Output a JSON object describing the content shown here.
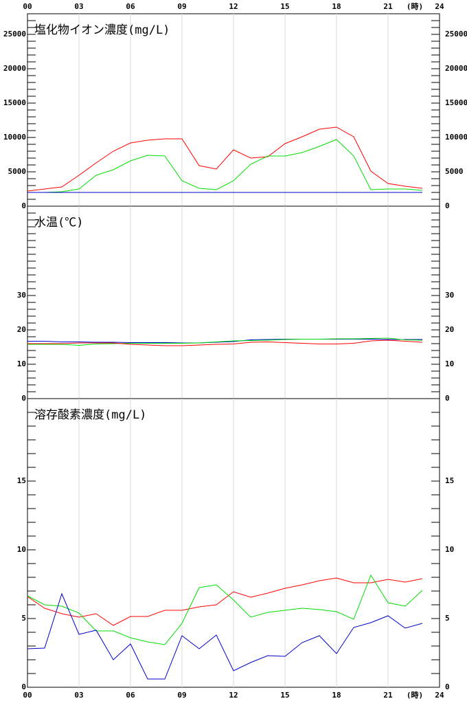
{
  "chart_data": [
    {
      "type": "line",
      "title": "塩化物イオン濃度(mg/L)",
      "x_label": "(時)",
      "x": [
        0,
        1,
        2,
        3,
        4,
        5,
        6,
        7,
        8,
        9,
        10,
        11,
        12,
        13,
        14,
        15,
        16,
        17,
        18,
        19,
        20,
        21,
        22,
        23
      ],
      "xlim": [
        0,
        24
      ],
      "xticks": [
        {
          "value": 0,
          "label": "00"
        },
        {
          "value": 3,
          "label": "03"
        },
        {
          "value": 6,
          "label": "06"
        },
        {
          "value": 9,
          "label": "09"
        },
        12,
        15,
        18,
        21,
        24
      ],
      "ylim": [
        0,
        28000
      ],
      "yticks": [
        0,
        5000,
        10000,
        15000,
        20000,
        25000
      ],
      "series": [
        {
          "color": "#ff0000",
          "values": [
            2200,
            2500,
            2800,
            4500,
            6300,
            8000,
            9200,
            9600,
            9800,
            9800,
            5900,
            5400,
            8200,
            7000,
            7200,
            9100,
            10100,
            11200,
            11500,
            10100,
            5100,
            3300,
            2900,
            2600
          ]
        },
        {
          "color": "#00dd00",
          "values": [
            2000,
            2000,
            2100,
            2500,
            4500,
            5300,
            6600,
            7400,
            7300,
            3700,
            2600,
            2400,
            3700,
            6100,
            7300,
            7300,
            7800,
            8700,
            9700,
            7300,
            2400,
            2500,
            2500,
            2300
          ]
        },
        {
          "color": "#0000cc",
          "values": [
            2000,
            2000,
            2000,
            2000,
            2000,
            2000,
            2000,
            2000,
            2000,
            2000,
            2000,
            2000,
            2000,
            2000,
            2000,
            2000,
            2000,
            2000,
            2000,
            2000,
            2000,
            2000,
            2000,
            2000
          ]
        }
      ]
    },
    {
      "type": "line",
      "title": "水温(℃)",
      "x": [
        0,
        1,
        2,
        3,
        4,
        5,
        6,
        7,
        8,
        9,
        10,
        11,
        12,
        13,
        14,
        15,
        16,
        17,
        18,
        19,
        20,
        21,
        22,
        23
      ],
      "xlim": [
        0,
        24
      ],
      "ylim": [
        0,
        56
      ],
      "yticks": [
        0,
        10,
        20,
        30
      ],
      "series": [
        {
          "color": "#0000cc",
          "values": [
            16.7,
            16.7,
            16.5,
            16.5,
            16.4,
            16.4,
            16.3,
            16.3,
            16.3,
            16.2,
            16.2,
            16.4,
            16.6,
            17.1,
            17.2,
            17.3,
            17.3,
            17.3,
            17.3,
            17.3,
            17.3,
            17.2,
            17.2,
            17.2
          ]
        },
        {
          "color": "#00dd00",
          "values": [
            15.8,
            15.8,
            15.8,
            15.5,
            15.9,
            16.0,
            16.1,
            16.1,
            16.1,
            16.1,
            16.2,
            16.5,
            16.8,
            16.9,
            17.0,
            17.2,
            17.3,
            17.3,
            17.4,
            17.4,
            17.5,
            17.6,
            17.1,
            17.0
          ]
        },
        {
          "color": "#ff0000",
          "values": [
            16.0,
            16.0,
            16.0,
            16.2,
            16.2,
            16.2,
            15.8,
            15.6,
            15.4,
            15.4,
            15.6,
            15.8,
            15.9,
            16.4,
            16.5,
            16.3,
            16.1,
            15.9,
            15.9,
            16.1,
            16.8,
            17.0,
            16.7,
            16.4
          ]
        }
      ]
    },
    {
      "type": "line",
      "title": "溶存酸素濃度(mg/L)",
      "x_label": "(時)",
      "x": [
        0,
        1,
        2,
        3,
        4,
        5,
        6,
        7,
        8,
        9,
        10,
        11,
        12,
        13,
        14,
        15,
        16,
        17,
        18,
        19,
        20,
        21,
        22,
        23
      ],
      "xlim": [
        0,
        24
      ],
      "xticks": [
        {
          "value": 0,
          "label": "00"
        },
        {
          "value": 3,
          "label": "03"
        },
        {
          "value": 6,
          "label": "06"
        },
        {
          "value": 9,
          "label": "09"
        },
        12,
        15,
        18,
        21,
        24
      ],
      "ylim": [
        0,
        21
      ],
      "yticks": [
        0,
        5,
        10,
        15
      ],
      "series": [
        {
          "color": "#ff0000",
          "values": [
            6.6,
            5.75,
            5.35,
            5.1,
            5.35,
            4.5,
            5.15,
            5.15,
            5.6,
            5.6,
            5.85,
            6.0,
            6.95,
            6.55,
            6.85,
            7.2,
            7.45,
            7.75,
            7.95,
            7.6,
            7.6,
            7.85,
            7.65,
            7.9
          ]
        },
        {
          "color": "#00dd00",
          "values": [
            6.65,
            6.0,
            5.9,
            5.4,
            4.1,
            4.1,
            3.6,
            3.3,
            3.1,
            4.65,
            7.25,
            7.45,
            6.35,
            5.1,
            5.45,
            5.6,
            5.75,
            5.65,
            5.5,
            4.95,
            8.15,
            6.15,
            5.9,
            7.05
          ]
        },
        {
          "color": "#0000cc",
          "values": [
            2.8,
            2.85,
            6.8,
            3.85,
            4.15,
            2.0,
            3.15,
            0.6,
            0.6,
            3.75,
            2.8,
            3.8,
            1.2,
            1.8,
            2.3,
            2.25,
            3.25,
            3.75,
            2.45,
            4.35,
            4.7,
            5.2,
            4.3,
            4.65
          ]
        }
      ]
    }
  ]
}
